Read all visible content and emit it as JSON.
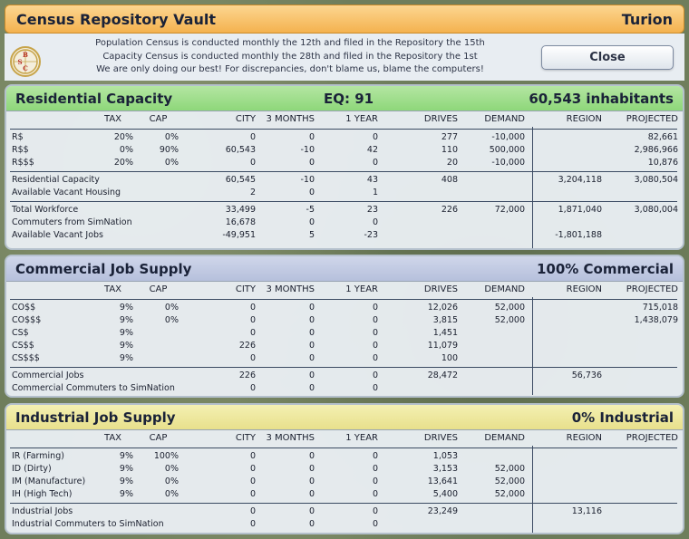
{
  "header": {
    "title": "Census Repository Vault",
    "city": "Turion",
    "logo_text": "BSC",
    "info_lines": [
      "Population Census is conducted monthly the 12th and filed in the Repository the 15th",
      "Capacity Census is conducted monthly the 28th and filed in the Repository the 1st",
      "We are only doing our best! For discrepancies, don't blame us, blame the computers!"
    ],
    "close_label": "Close"
  },
  "columns": {
    "tax": "TAX",
    "cap": "CAP",
    "city": "CITY",
    "m3": "3 MONTHS",
    "y1": "1 YEAR",
    "drives": "DRIVES",
    "demand": "DEMAND",
    "region": "REGION",
    "projected": "PROJECTED"
  },
  "residential": {
    "title": "Residential Capacity",
    "eq": "EQ: 91",
    "inhabitants": "60,543 inhabitants",
    "rows": [
      {
        "label": "R$",
        "tax": "20%",
        "cap": "0%",
        "city": "0",
        "m3": "0",
        "y1": "0",
        "drives": "277",
        "demand": "-10,000",
        "region": "",
        "projected": "82,661"
      },
      {
        "label": "R$$",
        "tax": "0%",
        "cap": "90%",
        "city": "60,543",
        "m3": "-10",
        "y1": "42",
        "drives": "110",
        "demand": "500,000",
        "region": "",
        "projected": "2,986,966"
      },
      {
        "label": "R$$$",
        "tax": "20%",
        "cap": "0%",
        "city": "0",
        "m3": "0",
        "y1": "0",
        "drives": "20",
        "demand": "-10,000",
        "region": "",
        "projected": "10,876"
      }
    ],
    "capacity_rows": [
      {
        "label": "Residential Capacity",
        "city": "60,545",
        "m3": "-10",
        "y1": "43",
        "drives": "408",
        "demand": "",
        "region": "3,204,118",
        "projected": "3,080,504"
      },
      {
        "label": "Available Vacant Housing",
        "city": "2",
        "m3": "0",
        "y1": "1",
        "drives": "",
        "demand": "",
        "region": "",
        "projected": ""
      }
    ],
    "workforce_rows": [
      {
        "label": "Total Workforce",
        "city": "33,499",
        "m3": "-5",
        "y1": "23",
        "drives": "226",
        "demand": "72,000",
        "region": "1,871,040",
        "projected": "3,080,004"
      },
      {
        "label": "Commuters from SimNation",
        "city": "16,678",
        "m3": "0",
        "y1": "0",
        "drives": "",
        "demand": "",
        "region": "",
        "projected": ""
      },
      {
        "label": "Available Vacant Jobs",
        "city": "-49,951",
        "m3": "5",
        "y1": "-23",
        "drives": "",
        "demand": "",
        "region": "-1,801,188",
        "projected": ""
      }
    ]
  },
  "commercial": {
    "title": "Commercial Job Supply",
    "summary": "100% Commercial",
    "rows": [
      {
        "label": "CO$$",
        "tax": "9%",
        "cap": "0%",
        "city": "0",
        "m3": "0",
        "y1": "0",
        "drives": "12,026",
        "demand": "52,000",
        "region": "",
        "projected": "715,018"
      },
      {
        "label": "CO$$$",
        "tax": "9%",
        "cap": "0%",
        "city": "0",
        "m3": "0",
        "y1": "0",
        "drives": "3,815",
        "demand": "52,000",
        "region": "",
        "projected": "1,438,079"
      },
      {
        "label": "CS$",
        "tax": "9%",
        "cap": "",
        "city": "0",
        "m3": "0",
        "y1": "0",
        "drives": "1,451",
        "demand": "",
        "region": "",
        "projected": ""
      },
      {
        "label": "CS$$",
        "tax": "9%",
        "cap": "",
        "city": "226",
        "m3": "0",
        "y1": "0",
        "drives": "11,079",
        "demand": "",
        "region": "",
        "projected": ""
      },
      {
        "label": "CS$$$",
        "tax": "9%",
        "cap": "",
        "city": "0",
        "m3": "0",
        "y1": "0",
        "drives": "100",
        "demand": "",
        "region": "",
        "projected": ""
      }
    ],
    "total_rows": [
      {
        "label": "Commercial Jobs",
        "city": "226",
        "m3": "0",
        "y1": "0",
        "drives": "28,472",
        "demand": "",
        "region": "56,736",
        "projected": ""
      },
      {
        "label": "Commercial Commuters to SimNation",
        "city": "0",
        "m3": "0",
        "y1": "0",
        "drives": "",
        "demand": "",
        "region": "",
        "projected": ""
      }
    ]
  },
  "industrial": {
    "title": "Industrial Job Supply",
    "summary": "0% Industrial",
    "rows": [
      {
        "label": "IR (Farming)",
        "tax": "9%",
        "cap": "100%",
        "city": "0",
        "m3": "0",
        "y1": "0",
        "drives": "1,053",
        "demand": "",
        "region": "",
        "projected": ""
      },
      {
        "label": "ID (Dirty)",
        "tax": "9%",
        "cap": "0%",
        "city": "0",
        "m3": "0",
        "y1": "0",
        "drives": "3,153",
        "demand": "52,000",
        "region": "",
        "projected": ""
      },
      {
        "label": "IM (Manufacture)",
        "tax": "9%",
        "cap": "0%",
        "city": "0",
        "m3": "0",
        "y1": "0",
        "drives": "13,641",
        "demand": "52,000",
        "region": "",
        "projected": ""
      },
      {
        "label": "IH (High Tech)",
        "tax": "9%",
        "cap": "0%",
        "city": "0",
        "m3": "0",
        "y1": "0",
        "drives": "5,400",
        "demand": "52,000",
        "region": "",
        "projected": ""
      }
    ],
    "total_rows": [
      {
        "label": "Industrial Jobs",
        "city": "0",
        "m3": "0",
        "y1": "0",
        "drives": "23,249",
        "demand": "",
        "region": "13,116",
        "projected": ""
      },
      {
        "label": "Industrial Commuters to SimNation",
        "city": "0",
        "m3": "0",
        "y1": "0",
        "drives": "",
        "demand": "",
        "region": "",
        "projected": ""
      }
    ]
  }
}
